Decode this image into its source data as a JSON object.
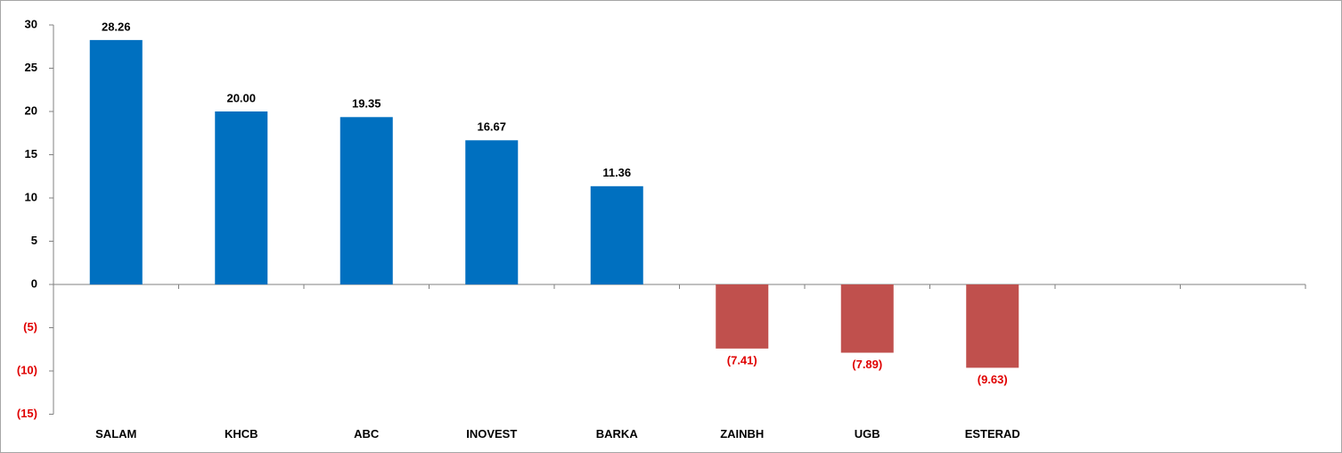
{
  "chart_data": {
    "type": "bar",
    "categories": [
      "SALAM",
      "KHCB",
      "ABC",
      "INOVEST",
      "BARKA",
      "ZAINBH",
      "UGB",
      "ESTERAD",
      null,
      null
    ],
    "values": [
      28.26,
      20,
      19.35,
      16.67,
      11.36,
      -7.41,
      -7.89,
      -9.63,
      null,
      null
    ],
    "value_labels": [
      "28.26",
      "20.00",
      "19.35",
      "16.67",
      "11.36",
      "(7.41)",
      "(7.89)",
      "(9.63)",
      null,
      null
    ],
    "color": "#0070c0",
    "negative_color": "#c0504d",
    "ylim": [
      -15,
      30
    ],
    "yticks": [
      30,
      25,
      20,
      15,
      10,
      5,
      0,
      {
        "value": -5,
        "label": "(5)"
      },
      {
        "value": -10,
        "label": "(10)"
      },
      {
        "value": -15,
        "label": "(15)"
      }
    ],
    "grid": false
  }
}
